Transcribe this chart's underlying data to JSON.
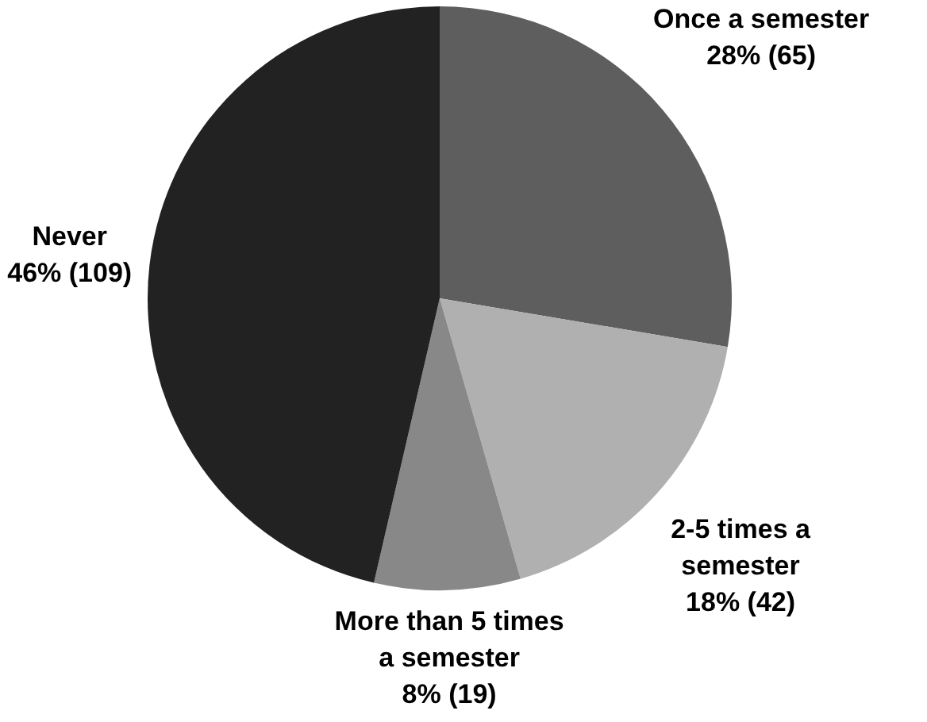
{
  "chart_data": {
    "type": "pie",
    "categories": [
      "Once a semester",
      "2-5 times a semester",
      "More than 5 times a semester",
      "Never"
    ],
    "values": [
      65,
      42,
      19,
      109
    ],
    "value_labels": [
      "28% (65)",
      "18% (42)",
      "8% (19)",
      "46% (109)"
    ],
    "colors": [
      "#5e5e5e",
      "#b0b0b0",
      "#888888",
      "#222222"
    ]
  }
}
